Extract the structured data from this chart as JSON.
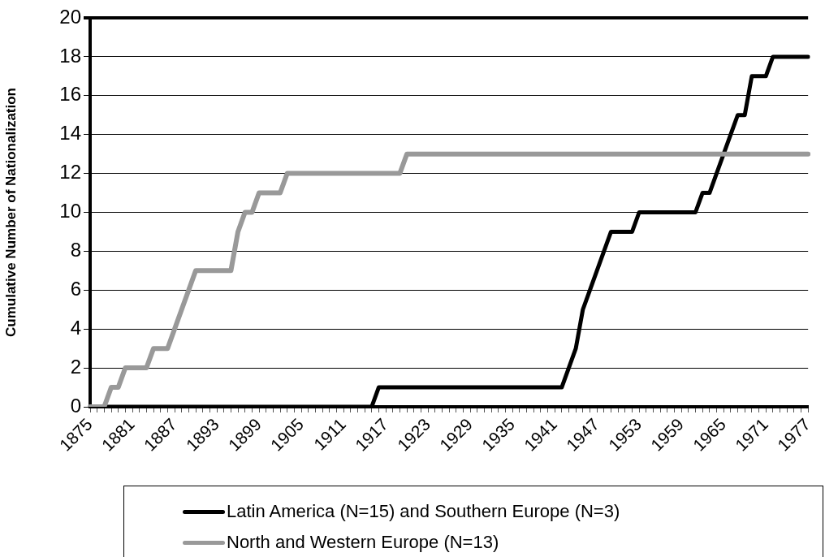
{
  "chart_data": {
    "type": "line",
    "ylabel": "Cumulative Number of Nationalization",
    "categories": [
      "1875",
      null,
      null,
      null,
      null,
      null,
      "1881",
      null,
      null,
      null,
      null,
      null,
      "1887",
      null,
      null,
      null,
      null,
      null,
      "1893",
      null,
      null,
      null,
      null,
      null,
      "1899",
      null,
      null,
      null,
      null,
      null,
      "1905",
      null,
      null,
      null,
      null,
      null,
      "1911",
      null,
      null,
      null,
      null,
      null,
      "1917",
      null,
      null,
      null,
      null,
      null,
      "1923",
      null,
      null,
      null,
      null,
      null,
      "1929",
      null,
      null,
      null,
      null,
      null,
      "1935",
      null,
      null,
      null,
      null,
      null,
      "1941",
      null,
      null,
      null,
      null,
      null,
      "1947",
      null,
      null,
      null,
      null,
      null,
      "1953",
      null,
      null,
      null,
      null,
      null,
      "1959",
      null,
      null,
      null,
      null,
      null,
      "1965",
      null,
      null,
      null,
      null,
      null,
      "1971",
      null,
      null,
      null,
      null,
      null,
      "1977"
    ],
    "series": [
      {
        "name": "Latin America (N=15) and Southern Europe (N=3)",
        "color": "#000000",
        "values": [
          0,
          0,
          0,
          0,
          0,
          0,
          0,
          0,
          0,
          0,
          0,
          0,
          0,
          0,
          0,
          0,
          0,
          0,
          0,
          0,
          0,
          0,
          0,
          0,
          0,
          0,
          0,
          0,
          0,
          0,
          0,
          0,
          0,
          0,
          0,
          0,
          0,
          0,
          0,
          0,
          0,
          1,
          1,
          1,
          1,
          1,
          1,
          1,
          1,
          1,
          1,
          1,
          1,
          1,
          1,
          1,
          1,
          1,
          1,
          1,
          1,
          1,
          1,
          1,
          1,
          1,
          1,
          1,
          2,
          3,
          5,
          6,
          7,
          8,
          9,
          9,
          9,
          9,
          10,
          10,
          10,
          10,
          10,
          10,
          10,
          10,
          10,
          11,
          11,
          12,
          13,
          14,
          15,
          15,
          17,
          17,
          17,
          18,
          18,
          18,
          18,
          18,
          18
        ]
      },
      {
        "name": "North and Western Europe (N=13)",
        "color": "#999999",
        "values": [
          0,
          0,
          0,
          1,
          1,
          2,
          2,
          2,
          2,
          3,
          3,
          3,
          4,
          5,
          6,
          7,
          7,
          7,
          7,
          7,
          7,
          9,
          10,
          10,
          11,
          11,
          11,
          11,
          12,
          12,
          12,
          12,
          12,
          12,
          12,
          12,
          12,
          12,
          12,
          12,
          12,
          12,
          12,
          12,
          12,
          13,
          13,
          13,
          13,
          13,
          13,
          13,
          13,
          13,
          13,
          13,
          13,
          13,
          13,
          13,
          13,
          13,
          13,
          13,
          13,
          13,
          13,
          13,
          13,
          13,
          13,
          13,
          13,
          13,
          13,
          13,
          13,
          13,
          13,
          13,
          13,
          13,
          13,
          13,
          13,
          13,
          13,
          13,
          13,
          13,
          13,
          13,
          13,
          13,
          13,
          13,
          13,
          13,
          13,
          13,
          13,
          13,
          13
        ]
      }
    ],
    "ylim": [
      0,
      20
    ],
    "yticks": [
      0,
      2,
      4,
      6,
      8,
      10,
      12,
      14,
      16,
      18,
      20
    ],
    "grid": "y",
    "legend": "bottom",
    "marker": "none",
    "line_style": "solid"
  }
}
